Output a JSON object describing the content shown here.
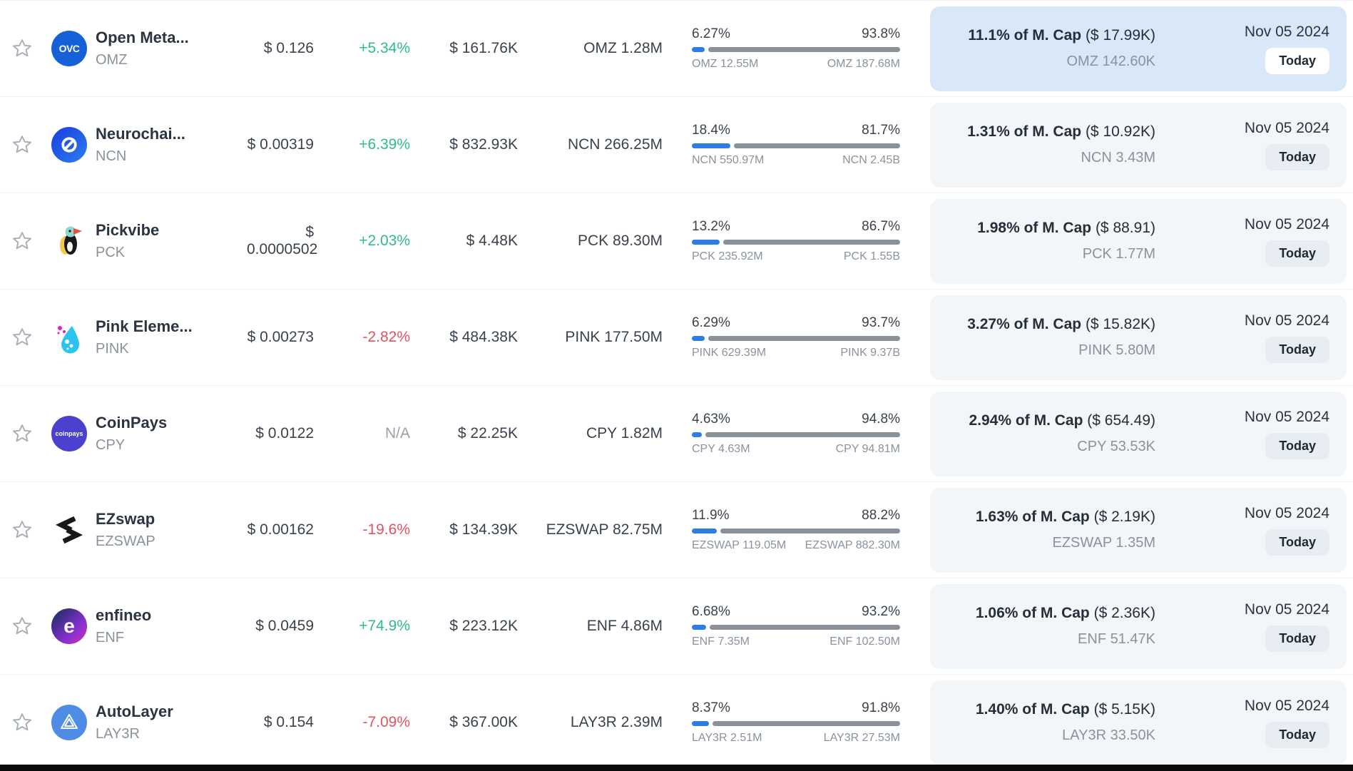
{
  "colors": {
    "accent_blue": "#2e7de5",
    "positive_green": "#2ebd85",
    "negative_red": "#e15360",
    "highlight_blue": "#d8e8f8",
    "bar_gray": "#8a9199"
  },
  "icons": [
    "favorite-star-icon"
  ],
  "rows": [
    {
      "name": "Open Meta...",
      "symbol": "OMZ",
      "logo_text": "OVC",
      "price": "$ 0.126",
      "change": "+5.34%",
      "change_class": "up",
      "volume": "$ 161.76K",
      "amount": "OMZ 1.28M",
      "bar": {
        "left_pct": "6.27%",
        "right_pct": "93.8%",
        "left_label": "OMZ 12.55M",
        "right_label": "OMZ 187.68M",
        "fill_pct": 6.27
      },
      "mcap": {
        "bold": "11.1% of M. Cap",
        "paren": "($ 17.99K)",
        "sub": "OMZ 142.60K"
      },
      "date": "Nov 05 2024",
      "badge": "Today",
      "highlighted": true
    },
    {
      "name": "Neurochai...",
      "symbol": "NCN",
      "price": "$ 0.00319",
      "change": "+6.39%",
      "change_class": "up",
      "volume": "$ 832.93K",
      "amount": "NCN 266.25M",
      "bar": {
        "left_pct": "18.4%",
        "right_pct": "81.7%",
        "left_label": "NCN 550.97M",
        "right_label": "NCN 2.45B",
        "fill_pct": 18.4
      },
      "mcap": {
        "bold": "1.31% of M. Cap",
        "paren": "($ 10.92K)",
        "sub": "NCN 3.43M"
      },
      "date": "Nov 05 2024",
      "badge": "Today",
      "highlighted": false
    },
    {
      "name": "Pickvibe",
      "symbol": "PCK",
      "price": "$ 0.0000502",
      "change": "+2.03%",
      "change_class": "up",
      "volume": "$ 4.48K",
      "amount": "PCK 89.30M",
      "bar": {
        "left_pct": "13.2%",
        "right_pct": "86.7%",
        "left_label": "PCK 235.92M",
        "right_label": "PCK 1.55B",
        "fill_pct": 13.2
      },
      "mcap": {
        "bold": "1.98% of M. Cap",
        "paren": "($ 88.91)",
        "sub": "PCK 1.77M"
      },
      "date": "Nov 05 2024",
      "badge": "Today",
      "highlighted": false
    },
    {
      "name": "Pink Eleme...",
      "symbol": "PINK",
      "price": "$ 0.00273",
      "change": "-2.82%",
      "change_class": "down",
      "volume": "$ 484.38K",
      "amount": "PINK 177.50M",
      "bar": {
        "left_pct": "6.29%",
        "right_pct": "93.7%",
        "left_label": "PINK 629.39M",
        "right_label": "PINK 9.37B",
        "fill_pct": 6.29
      },
      "mcap": {
        "bold": "3.27% of M. Cap",
        "paren": "($ 15.82K)",
        "sub": "PINK 5.80M"
      },
      "date": "Nov 05 2024",
      "badge": "Today",
      "highlighted": false
    },
    {
      "name": "CoinPays",
      "symbol": "CPY",
      "logo_text": "coinpays",
      "price": "$ 0.0122",
      "change": "N/A",
      "change_class": "na",
      "volume": "$ 22.25K",
      "amount": "CPY 1.82M",
      "bar": {
        "left_pct": "4.63%",
        "right_pct": "94.8%",
        "left_label": "CPY 4.63M",
        "right_label": "CPY 94.81M",
        "fill_pct": 4.63
      },
      "mcap": {
        "bold": "2.94% of M. Cap",
        "paren": "($ 654.49)",
        "sub": "CPY 53.53K"
      },
      "date": "Nov 05 2024",
      "badge": "Today",
      "highlighted": false
    },
    {
      "name": "EZswap",
      "symbol": "EZSWAP",
      "price": "$ 0.00162",
      "change": "-19.6%",
      "change_class": "down",
      "volume": "$ 134.39K",
      "amount": "EZSWAP 82.75M",
      "bar": {
        "left_pct": "11.9%",
        "right_pct": "88.2%",
        "left_label": "EZSWAP 119.05M",
        "right_label": "EZSWAP 882.30M",
        "fill_pct": 11.9
      },
      "mcap": {
        "bold": "1.63% of M. Cap",
        "paren": "($ 2.19K)",
        "sub": "EZSWAP 1.35M"
      },
      "date": "Nov 05 2024",
      "badge": "Today",
      "highlighted": false
    },
    {
      "name": "enfineo",
      "symbol": "ENF",
      "logo_text": "e",
      "price": "$ 0.0459",
      "change": "+74.9%",
      "change_class": "up",
      "volume": "$ 223.12K",
      "amount": "ENF 4.86M",
      "bar": {
        "left_pct": "6.68%",
        "right_pct": "93.2%",
        "left_label": "ENF 7.35M",
        "right_label": "ENF 102.50M",
        "fill_pct": 6.68
      },
      "mcap": {
        "bold": "1.06% of M. Cap",
        "paren": "($ 2.36K)",
        "sub": "ENF 51.47K"
      },
      "date": "Nov 05 2024",
      "badge": "Today",
      "highlighted": false
    },
    {
      "name": "AutoLayer",
      "symbol": "LAY3R",
      "price": "$ 0.154",
      "change": "-7.09%",
      "change_class": "down",
      "volume": "$ 367.00K",
      "amount": "LAY3R 2.39M",
      "bar": {
        "left_pct": "8.37%",
        "right_pct": "91.8%",
        "left_label": "LAY3R 2.51M",
        "right_label": "LAY3R 27.53M",
        "fill_pct": 8.37
      },
      "mcap": {
        "bold": "1.40% of M. Cap",
        "paren": "($ 5.15K)",
        "sub": "LAY3R 33.50K"
      },
      "date": "Nov 05 2024",
      "badge": "Today",
      "highlighted": false
    }
  ]
}
